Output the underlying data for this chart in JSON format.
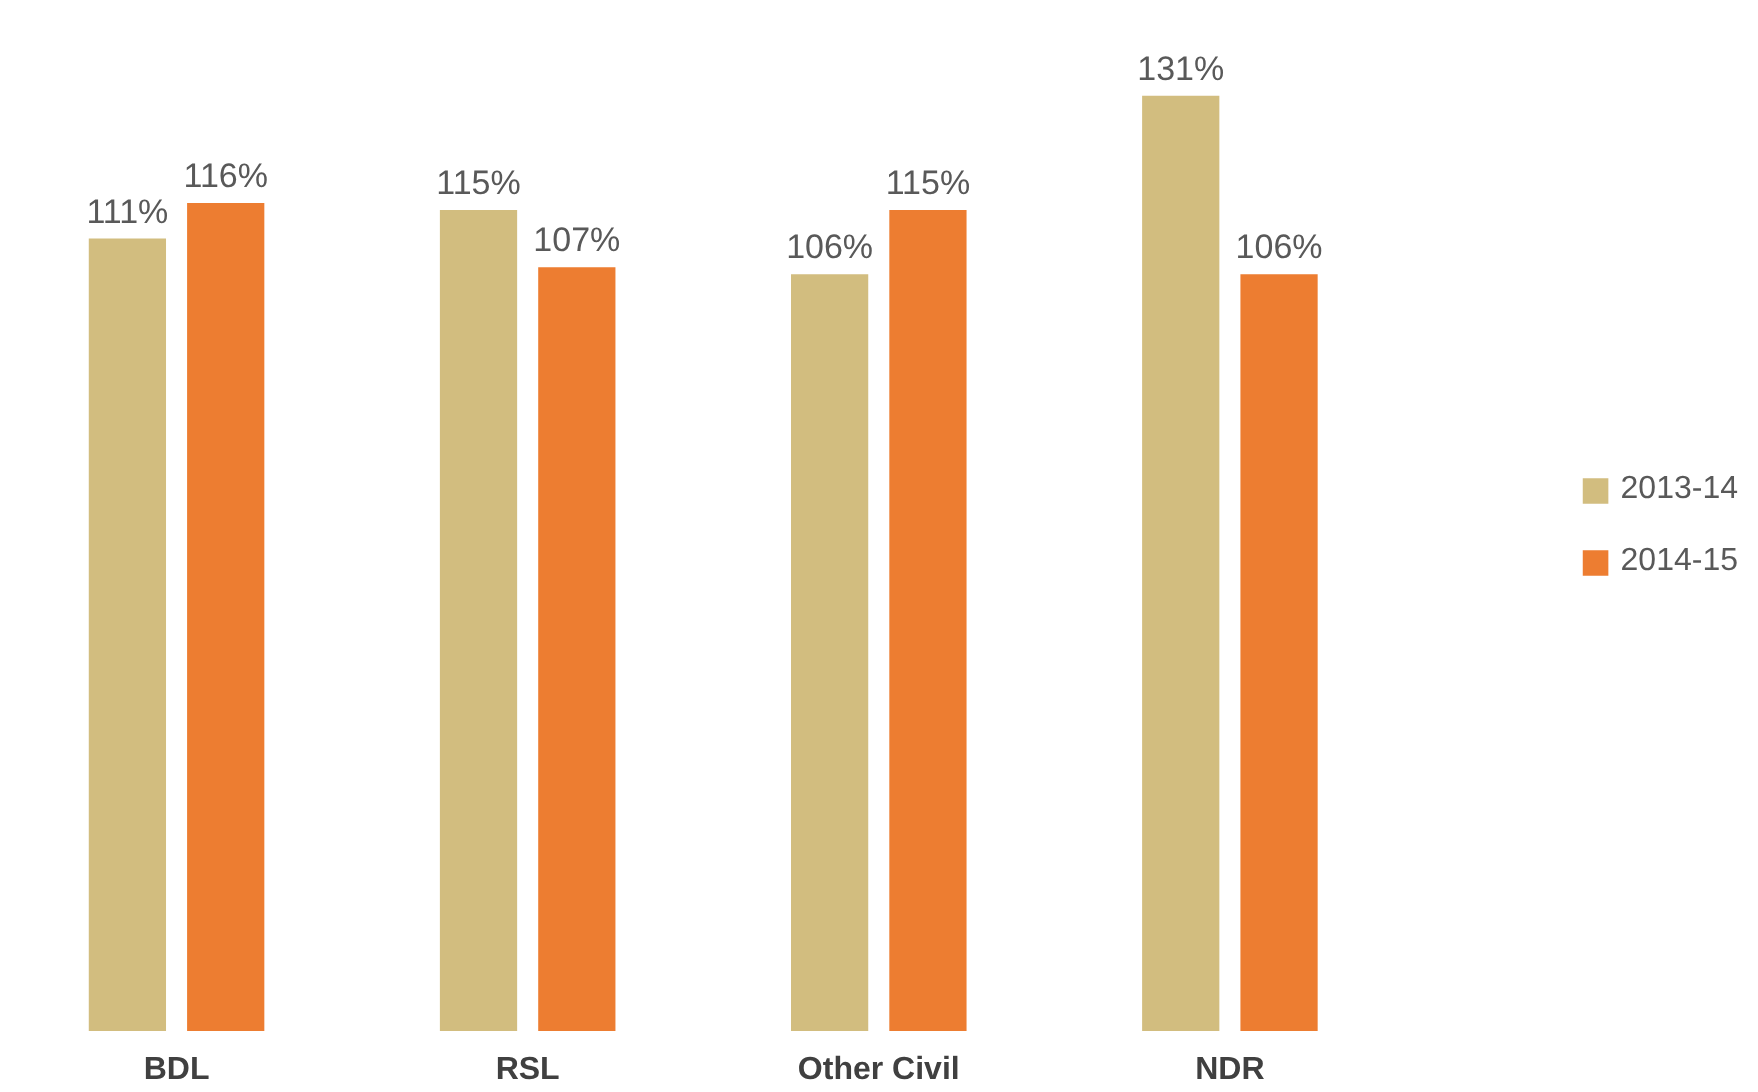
{
  "chart_data": {
    "type": "bar",
    "categories": [
      "BDL",
      "RSL",
      "Other Civil",
      "NDR"
    ],
    "series": [
      {
        "name": "2013-14",
        "color": "#d2bd7f",
        "values": [
          111,
          115,
          106,
          131
        ],
        "value_labels": [
          "111%",
          "115%",
          "106%",
          "131%"
        ]
      },
      {
        "name": "2014-15",
        "color": "#ed7d31",
        "values": [
          116,
          107,
          115,
          106
        ],
        "value_labels": [
          "116%",
          "107%",
          "115%",
          "106%"
        ]
      }
    ],
    "legend": "right",
    "grid": false
  }
}
